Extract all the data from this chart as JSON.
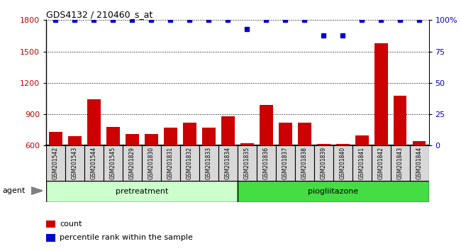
{
  "title": "GDS4132 / 210460_s_at",
  "samples": [
    "GSM201542",
    "GSM201543",
    "GSM201544",
    "GSM201545",
    "GSM201829",
    "GSM201830",
    "GSM201831",
    "GSM201832",
    "GSM201833",
    "GSM201834",
    "GSM201835",
    "GSM201836",
    "GSM201837",
    "GSM201838",
    "GSM201839",
    "GSM201840",
    "GSM201841",
    "GSM201842",
    "GSM201843",
    "GSM201844"
  ],
  "counts": [
    730,
    690,
    1040,
    780,
    710,
    710,
    770,
    820,
    770,
    880,
    620,
    990,
    820,
    820,
    615,
    615,
    695,
    1580,
    1080,
    640
  ],
  "percentile": [
    100,
    100,
    100,
    100,
    100,
    100,
    100,
    100,
    100,
    100,
    93,
    100,
    100,
    100,
    88,
    88,
    100,
    100,
    100,
    100
  ],
  "groups": [
    {
      "label": "pretreatment",
      "start": 0,
      "end": 9,
      "color": "#ccffcc"
    },
    {
      "label": "piogliitazone",
      "start": 10,
      "end": 19,
      "color": "#44dd44"
    }
  ],
  "ylim_left": [
    600,
    1800
  ],
  "ylim_right": [
    0,
    100
  ],
  "yticks_left": [
    600,
    900,
    1200,
    1500,
    1800
  ],
  "yticks_right": [
    0,
    25,
    50,
    75,
    100
  ],
  "bar_color": "#CC0000",
  "dot_color": "#0000CC",
  "grid_color": "#000000",
  "agent_label": "agent",
  "legend_count_label": "count",
  "legend_pct_label": "percentile rank within the sample",
  "bar_bottom": 600
}
